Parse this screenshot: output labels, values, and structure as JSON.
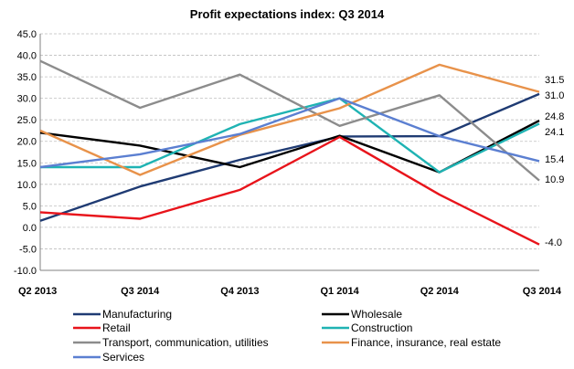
{
  "chart_data": {
    "type": "line",
    "title": "Profit expectations index: Q3 2014",
    "xlabel": "",
    "ylabel": "",
    "categories": [
      "Q2 2013",
      "Q3 2014",
      "Q4 2013",
      "Q1 2014",
      "Q2 2014",
      "Q3 2014"
    ],
    "ylim": [
      -10,
      45
    ],
    "yticks": [
      "45.0",
      "40.0",
      "35.0",
      "30.0",
      "25.0",
      "20.0",
      "15.0",
      "10.0",
      "5.0",
      "0.0",
      "-5.0",
      "-10.0"
    ],
    "ytick_values": [
      45,
      40,
      35,
      30,
      25,
      20,
      15,
      10,
      5,
      0,
      -5,
      -10
    ],
    "grid": true,
    "legend_position": "bottom",
    "series": [
      {
        "name": "Manufacturing",
        "color": "#1f3b73",
        "values": [
          1.5,
          9.5,
          15.7,
          21.1,
          21.2,
          31.0
        ],
        "end_label": "31.0"
      },
      {
        "name": "Wholesale",
        "color": "#000000",
        "values": [
          22.0,
          19.0,
          14.0,
          21.3,
          12.8,
          24.8
        ],
        "end_label": "24.8"
      },
      {
        "name": "Retail",
        "color": "#e8141b",
        "values": [
          3.5,
          2.0,
          8.7,
          21.0,
          7.6,
          -4.0
        ],
        "end_label": "-4.0"
      },
      {
        "name": "Construction",
        "color": "#1fb3b3",
        "values": [
          14.0,
          14.0,
          24.0,
          30.0,
          12.8,
          24.1
        ],
        "end_label": "24.1"
      },
      {
        "name": "Transport, communication, utilities",
        "color": "#8c8c8c",
        "values": [
          38.7,
          27.8,
          35.5,
          23.6,
          30.7,
          10.9
        ],
        "end_label": "10.9"
      },
      {
        "name": "Finance, insurance, real estate",
        "color": "#e8924a",
        "values": [
          22.5,
          12.2,
          21.5,
          27.7,
          37.8,
          31.5
        ],
        "end_label": "31.5"
      },
      {
        "name": "Services",
        "color": "#5b7fd1",
        "values": [
          14.0,
          17.0,
          21.7,
          30.0,
          21.2,
          15.4
        ],
        "end_label": "15.4"
      }
    ]
  }
}
